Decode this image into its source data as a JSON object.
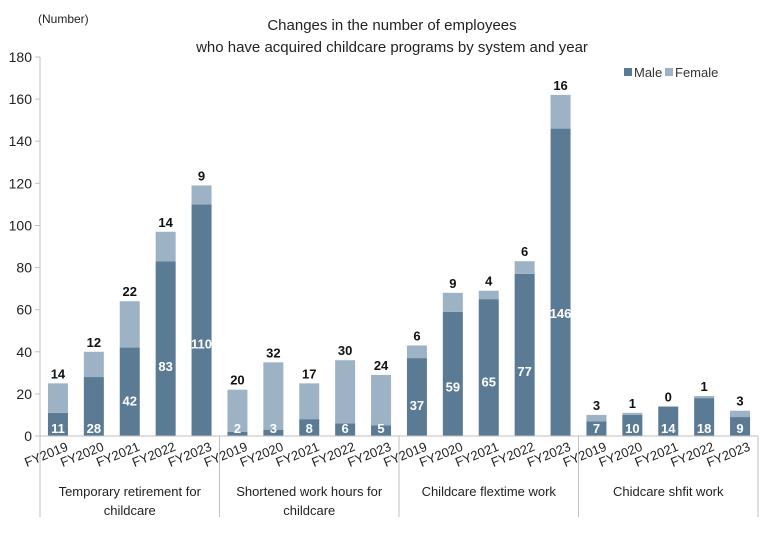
{
  "chart_data": {
    "type": "bar",
    "stacked": true,
    "title_line1": "Changes in the number of employees",
    "title_line2": "who have acquired childcare programs by system and year",
    "ylabel": "(Number)",
    "ylim": [
      0,
      180
    ],
    "yticks": [
      0,
      20,
      40,
      60,
      80,
      100,
      120,
      140,
      160,
      180
    ],
    "legend_position": "top-right",
    "colors": {
      "male": "#5b7a94",
      "female": "#9db2c4",
      "axis": "#bfbfbf"
    },
    "series": [
      {
        "name": "Male"
      },
      {
        "name": "Female"
      }
    ],
    "groups": [
      {
        "label": "Temporary retirement for childcare",
        "label_lines": [
          "Temporary retirement for",
          "childcare"
        ],
        "years": [
          "FY2019",
          "FY2020",
          "FY2021",
          "FY2022",
          "FY2023"
        ],
        "male": [
          11,
          28,
          42,
          83,
          110
        ],
        "female": [
          14,
          12,
          22,
          14,
          9
        ]
      },
      {
        "label": "Shortened work hours for childcare",
        "label_lines": [
          "Shortened work hours for",
          "childcare"
        ],
        "years": [
          "FY2019",
          "FY2020",
          "FY2021",
          "FY2022",
          "FY2023"
        ],
        "male": [
          2,
          3,
          8,
          6,
          5
        ],
        "female": [
          20,
          32,
          17,
          30,
          24
        ]
      },
      {
        "label": "Childcare flextime work",
        "label_lines": [
          "Childcare flextime work"
        ],
        "years": [
          "FY2019",
          "FY2020",
          "FY2021",
          "FY2022",
          "FY2023"
        ],
        "male": [
          37,
          59,
          65,
          77,
          146
        ],
        "female": [
          6,
          9,
          4,
          6,
          16
        ]
      },
      {
        "label": "Chidcare shfit work",
        "label_lines": [
          "Chidcare shfit work"
        ],
        "years": [
          "FY2019",
          "FY2020",
          "FY2021",
          "FY2022",
          "FY2023"
        ],
        "male": [
          7,
          10,
          14,
          18,
          9
        ],
        "female": [
          3,
          1,
          0,
          1,
          3
        ]
      }
    ]
  }
}
